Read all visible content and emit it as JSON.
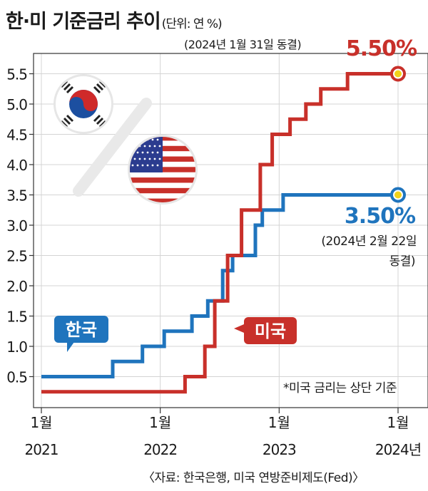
{
  "title": "한·미 기준금리 추이",
  "unit": "(단위: 연 %)",
  "source": "〈자료: 한국은행, 미국 연방준비제도(Fed)〉",
  "colors": {
    "us": "#c8302a",
    "korea": "#1f74bd",
    "grid": "#d4d4d4",
    "dot": "#f2d21a"
  },
  "chart_data": {
    "type": "line",
    "step": true,
    "x_unit": "months since Jan 2021",
    "ylim": [
      0,
      5.75
    ],
    "yticks": [
      "0.5",
      "1.0",
      "1.5",
      "2.0",
      "2.5",
      "3.0",
      "3.5",
      "4.0",
      "4.5",
      "5.0",
      "5.5"
    ],
    "xticks": [
      {
        "x": 0,
        "month": "1월",
        "year": "2021"
      },
      {
        "x": 12,
        "month": "1월",
        "year": "2022"
      },
      {
        "x": 24,
        "month": "1월",
        "year": "2023"
      },
      {
        "x": 36,
        "month": "1월",
        "year": "2024년"
      }
    ],
    "grid": true,
    "note": "*미국 금리는 상단 기준",
    "series": [
      {
        "name": "미국",
        "color": "#c8302a",
        "end_label": "5.50%",
        "end_note": "(2024년 1월 31일 동결)",
        "points": [
          [
            0,
            0.25
          ],
          [
            14.5,
            0.25
          ],
          [
            14.5,
            0.5
          ],
          [
            16.5,
            0.5
          ],
          [
            16.5,
            1.0
          ],
          [
            17.5,
            1.0
          ],
          [
            17.5,
            1.75
          ],
          [
            18.8,
            1.75
          ],
          [
            18.8,
            2.5
          ],
          [
            20.2,
            2.5
          ],
          [
            20.2,
            3.25
          ],
          [
            22.1,
            3.25
          ],
          [
            22.1,
            4.0
          ],
          [
            23.3,
            4.0
          ],
          [
            23.3,
            4.5
          ],
          [
            25.1,
            4.5
          ],
          [
            25.1,
            4.75
          ],
          [
            26.7,
            4.75
          ],
          [
            26.7,
            5.0
          ],
          [
            28.2,
            5.0
          ],
          [
            28.2,
            5.25
          ],
          [
            30.9,
            5.25
          ],
          [
            30.9,
            5.5
          ],
          [
            36,
            5.5
          ]
        ]
      },
      {
        "name": "한국",
        "color": "#1f74bd",
        "end_label": "3.50%",
        "end_note": "(2024년 2월 22일 동결)",
        "points": [
          [
            0,
            0.5
          ],
          [
            7.2,
            0.5
          ],
          [
            7.2,
            0.75
          ],
          [
            10.2,
            0.75
          ],
          [
            10.2,
            1.0
          ],
          [
            12.4,
            1.0
          ],
          [
            12.4,
            1.25
          ],
          [
            15.2,
            1.25
          ],
          [
            15.2,
            1.5
          ],
          [
            16.8,
            1.5
          ],
          [
            16.8,
            1.75
          ],
          [
            18.3,
            1.75
          ],
          [
            18.3,
            2.25
          ],
          [
            19.3,
            2.25
          ],
          [
            19.3,
            2.5
          ],
          [
            21.6,
            2.5
          ],
          [
            21.6,
            3.0
          ],
          [
            22.3,
            3.0
          ],
          [
            22.3,
            3.25
          ],
          [
            24.4,
            3.25
          ],
          [
            24.4,
            3.5
          ],
          [
            36,
            3.5
          ]
        ]
      }
    ]
  }
}
